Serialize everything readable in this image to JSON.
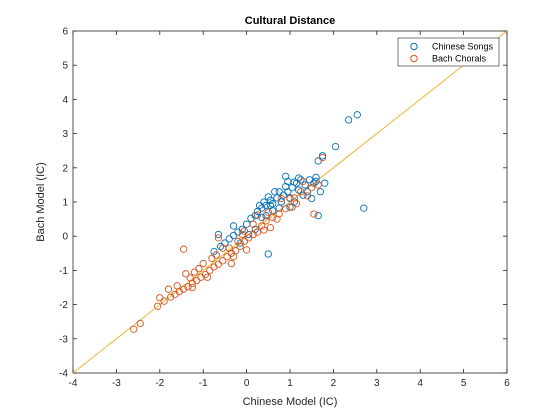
{
  "chart_data": {
    "type": "scatter",
    "title": "Cultural Distance",
    "xlabel": "Chinese Model (IC)",
    "ylabel": "Bach Model (IC)",
    "xlim": [
      -4,
      6
    ],
    "ylim": [
      -4,
      6
    ],
    "xticks": [
      "-4",
      "-3",
      "-2",
      "-1",
      "0",
      "1",
      "2",
      "3",
      "4",
      "5",
      "6"
    ],
    "yticks": [
      "-4",
      "-3",
      "-2",
      "-1",
      "0",
      "1",
      "2",
      "3",
      "4",
      "5",
      "6"
    ],
    "grid": false,
    "legend_position": "top-right",
    "reference_line": {
      "type": "identity",
      "color": "#EDB120"
    },
    "series": [
      {
        "name": "Chinese Songs",
        "color": "#0072BD",
        "marker": "open-circle",
        "points": [
          [
            2.55,
            3.55
          ],
          [
            2.35,
            3.4
          ],
          [
            2.05,
            2.62
          ],
          [
            1.75,
            2.35
          ],
          [
            1.65,
            2.2
          ],
          [
            2.7,
            0.82
          ],
          [
            1.65,
            0.6
          ],
          [
            0.5,
            -0.52
          ],
          [
            1.6,
            1.72
          ],
          [
            1.55,
            1.55
          ],
          [
            1.45,
            1.65
          ],
          [
            1.35,
            1.5
          ],
          [
            1.25,
            1.65
          ],
          [
            1.15,
            1.55
          ],
          [
            1.1,
            1.58
          ],
          [
            1.05,
            1.42
          ],
          [
            0.95,
            1.3
          ],
          [
            0.9,
            1.45
          ],
          [
            0.85,
            1.2
          ],
          [
            0.75,
            1.3
          ],
          [
            0.7,
            1.12
          ],
          [
            0.65,
            1.3
          ],
          [
            0.6,
            0.95
          ],
          [
            0.55,
            1.05
          ],
          [
            0.5,
            1.15
          ],
          [
            0.45,
            0.9
          ],
          [
            0.4,
            1.0
          ],
          [
            0.35,
            0.82
          ],
          [
            0.3,
            0.9
          ],
          [
            0.25,
            0.72
          ],
          [
            0.2,
            0.6
          ],
          [
            0.1,
            0.52
          ],
          [
            0.0,
            0.35
          ],
          [
            -0.1,
            0.2
          ],
          [
            -0.2,
            0.12
          ],
          [
            -0.3,
            0.02
          ],
          [
            -0.4,
            -0.08
          ],
          [
            -0.5,
            -0.2
          ],
          [
            -0.6,
            -0.3
          ],
          [
            -0.75,
            -0.45
          ],
          [
            1.0,
            1.12
          ],
          [
            0.8,
            1.0
          ],
          [
            1.2,
            1.35
          ],
          [
            1.3,
            1.2
          ],
          [
            1.4,
            1.3
          ],
          [
            1.5,
            1.1
          ],
          [
            1.7,
            1.3
          ],
          [
            1.8,
            1.55
          ],
          [
            0.9,
            1.75
          ],
          [
            0.95,
            1.6
          ],
          [
            0.35,
            0.55
          ],
          [
            -0.3,
            0.3
          ],
          [
            -0.65,
            0.05
          ],
          [
            0.6,
            0.75
          ],
          [
            1.1,
            1.0
          ],
          [
            0.75,
            0.82
          ],
          [
            1.6,
            1.6
          ],
          [
            1.2,
            1.7
          ],
          [
            0.05,
            0.05
          ],
          [
            -0.15,
            -0.2
          ],
          [
            0.2,
            0.2
          ],
          [
            0.45,
            0.6
          ],
          [
            1.0,
            0.85
          ],
          [
            0.55,
            0.9
          ]
        ]
      },
      {
        "name": "Bach Chorals",
        "color": "#D95319",
        "marker": "open-circle",
        "points": [
          [
            1.75,
            2.3
          ],
          [
            1.3,
            1.6
          ],
          [
            1.5,
            1.42
          ],
          [
            1.1,
            1.12
          ],
          [
            1.05,
            0.85
          ],
          [
            0.9,
            0.8
          ],
          [
            0.75,
            0.65
          ],
          [
            0.6,
            0.55
          ],
          [
            0.45,
            0.45
          ],
          [
            0.35,
            0.3
          ],
          [
            0.25,
            0.12
          ],
          [
            0.15,
            0.05
          ],
          [
            0.05,
            -0.05
          ],
          [
            -0.05,
            -0.15
          ],
          [
            -0.15,
            -0.3
          ],
          [
            -0.25,
            -0.42
          ],
          [
            -0.35,
            -0.5
          ],
          [
            -0.45,
            -0.6
          ],
          [
            -0.55,
            -0.72
          ],
          [
            -0.65,
            -0.82
          ],
          [
            -0.75,
            -0.9
          ],
          [
            -0.85,
            -1.0
          ],
          [
            -0.95,
            -1.12
          ],
          [
            -1.05,
            -1.2
          ],
          [
            -1.15,
            -1.3
          ],
          [
            -1.25,
            -1.38
          ],
          [
            -1.35,
            -1.48
          ],
          [
            -1.45,
            -1.55
          ],
          [
            -1.55,
            -1.62
          ],
          [
            -1.65,
            -1.7
          ],
          [
            -1.75,
            -1.78
          ],
          [
            -1.9,
            -1.9
          ],
          [
            -2.05,
            -2.05
          ],
          [
            -2.45,
            -2.55
          ],
          [
            -2.6,
            -2.72
          ],
          [
            -1.45,
            -0.38
          ],
          [
            -0.65,
            -0.05
          ],
          [
            -0.2,
            -0.15
          ],
          [
            0.25,
            0.62
          ],
          [
            1.55,
            0.65
          ],
          [
            1.15,
            0.95
          ],
          [
            0.8,
            1.1
          ],
          [
            0.5,
            0.7
          ],
          [
            0.15,
            0.35
          ],
          [
            -0.1,
            0.05
          ],
          [
            -0.4,
            -0.35
          ],
          [
            -0.7,
            -0.55
          ],
          [
            -1.0,
            -0.8
          ],
          [
            -1.2,
            -1.05
          ],
          [
            -1.4,
            -1.1
          ],
          [
            -1.6,
            -1.45
          ],
          [
            -0.3,
            -0.6
          ],
          [
            -0.9,
            -1.2
          ],
          [
            -1.25,
            -1.5
          ],
          [
            0.4,
            0.18
          ],
          [
            0.7,
            0.5
          ],
          [
            1.0,
            1.1
          ],
          [
            1.25,
            1.3
          ],
          [
            1.65,
            1.5
          ],
          [
            -0.05,
            0.15
          ],
          [
            -0.55,
            -0.35
          ],
          [
            -1.1,
            -0.95
          ],
          [
            -1.8,
            -1.55
          ],
          [
            -2.0,
            -1.8
          ],
          [
            -0.35,
            -0.8
          ],
          [
            0.0,
            -0.4
          ],
          [
            -0.8,
            -0.65
          ],
          [
            -1.3,
            -1.22
          ],
          [
            0.55,
            0.25
          ],
          [
            1.4,
            1.18
          ]
        ]
      }
    ]
  }
}
